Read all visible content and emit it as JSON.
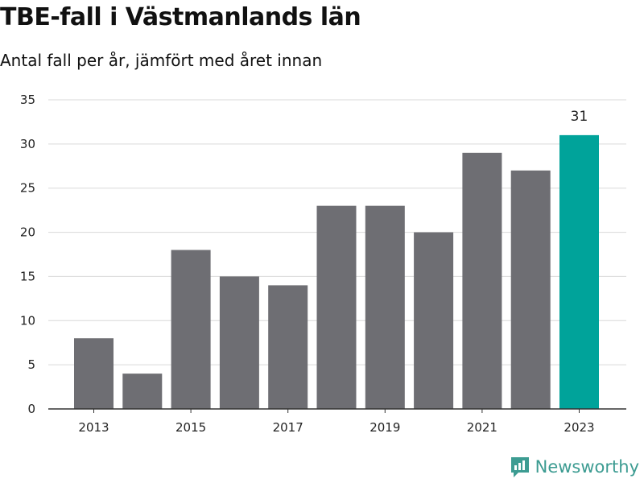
{
  "chart_data": {
    "type": "bar",
    "title": "TBE-fall i Västmanlands län",
    "subtitle": "Antal fall per år, jämfört med året innan",
    "categories": [
      "2013",
      "2014",
      "2015",
      "2016",
      "2017",
      "2018",
      "2019",
      "2020",
      "2021",
      "2022",
      "2023"
    ],
    "values": [
      8,
      4,
      18,
      15,
      14,
      23,
      23,
      20,
      29,
      27,
      31
    ],
    "x_tick_labels": [
      "2013",
      "2015",
      "2017",
      "2019",
      "2021",
      "2023"
    ],
    "y_ticks": [
      "0",
      "5",
      "10",
      "15",
      "20",
      "25",
      "30",
      "35"
    ],
    "ylim": [
      0,
      35
    ],
    "grid": true,
    "highlight_index": 10,
    "data_labels": [
      {
        "index": 10,
        "text": "31"
      }
    ],
    "colors": {
      "bar": "#6e6e73",
      "highlight": "#00a39a",
      "grid": "#d9d9d9",
      "axis": "#333333"
    }
  },
  "brand": {
    "name": "Newsworthy",
    "icon": "newsworthy-logo-icon",
    "color": "#3d9c92"
  }
}
